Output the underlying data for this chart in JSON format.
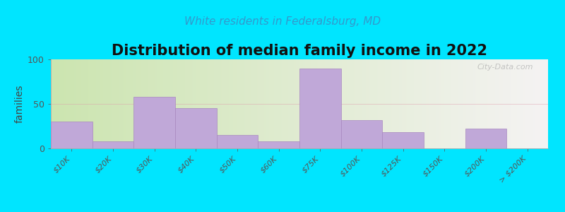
{
  "title": "Distribution of median family income in 2022",
  "subtitle": "White residents in Federalsburg, MD",
  "ylabel": "families",
  "categories": [
    "$10K",
    "$20K",
    "$30K",
    "$40K",
    "$50K",
    "$60K",
    "$75K",
    "$100K",
    "$125K",
    "$150K",
    "$200K",
    "> $200K"
  ],
  "values": [
    30,
    8,
    58,
    45,
    15,
    8,
    90,
    32,
    18,
    0,
    22,
    0
  ],
  "bar_color": "#c0a8d8",
  "bar_edge_color": "#a888c0",
  "background_outer": "#00e5ff",
  "bg_left_color": "#cce5b0",
  "bg_right_color": "#f5f3f3",
  "title_fontsize": 15,
  "subtitle_fontsize": 11,
  "ylabel_fontsize": 10,
  "tick_fontsize": 8,
  "ylim": [
    0,
    100
  ],
  "yticks": [
    0,
    50,
    100
  ],
  "grid_color": "#dd99aa",
  "watermark": "City-Data.com"
}
